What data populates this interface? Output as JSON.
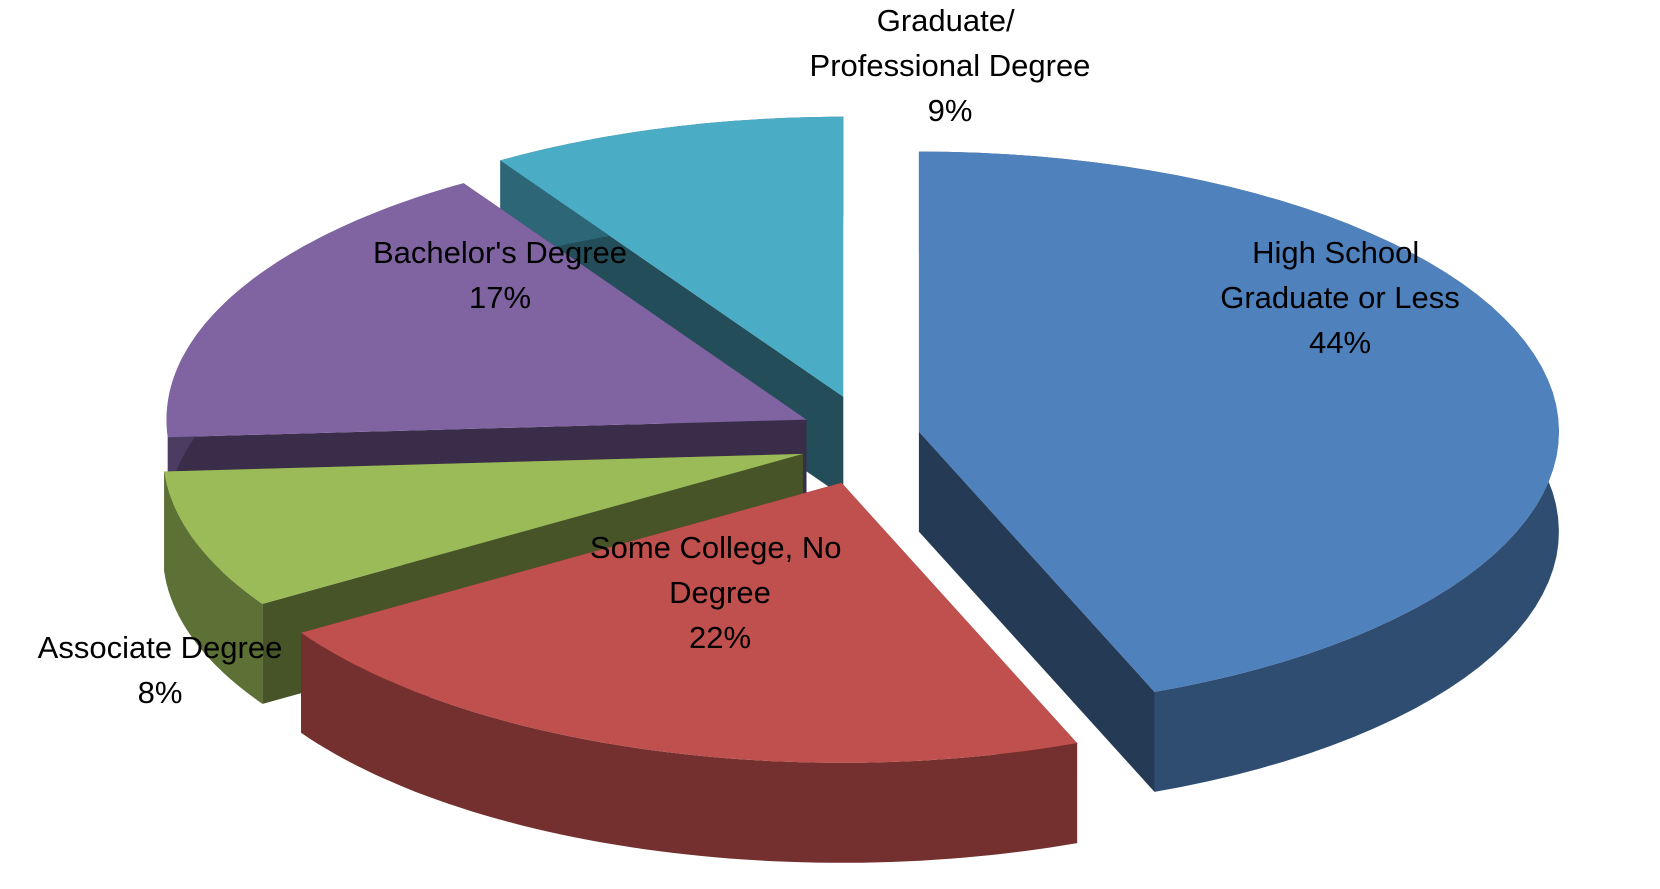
{
  "chart_data": {
    "type": "pie3d",
    "categories": [
      "High School Graduate or Less",
      "Some College, No Degree",
      "Associate Degree",
      "Bachelor's Degree",
      "Graduate/ Professional Degree"
    ],
    "values": [
      44,
      22,
      8,
      17,
      9
    ],
    "value_labels": [
      "44%",
      "22%",
      "8%",
      "17%",
      "9%"
    ],
    "colors": [
      "#4f81bd",
      "#c0504d",
      "#9bbb59",
      "#8064a2",
      "#4bacc6"
    ]
  }
}
